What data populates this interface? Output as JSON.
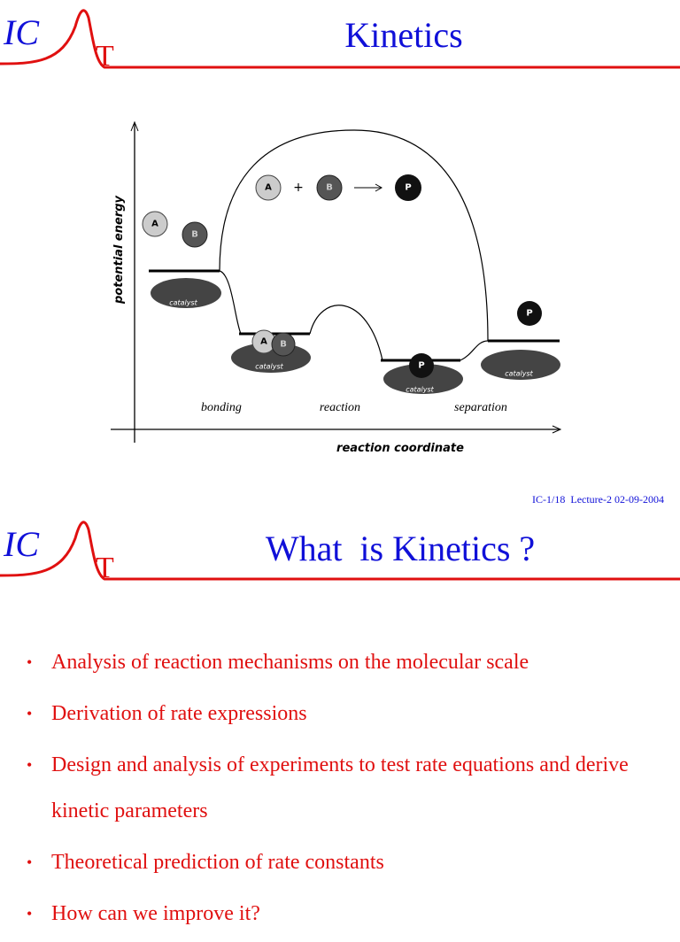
{
  "slides": [
    {
      "logo": {
        "left": "IC",
        "right": "T"
      },
      "title": "Kinetics",
      "diagram": {
        "y_label": "potential energy",
        "x_label": "reaction coordinate",
        "stages": [
          "bonding",
          "reaction",
          "separation"
        ],
        "catalyst": "catalyst",
        "reactant_a": "A",
        "reactant_b": "B",
        "plus": "+",
        "product": "P"
      },
      "footer": "IC-1/18  Lecture-2 02-09-2004"
    },
    {
      "logo": {
        "left": "IC",
        "right": "T"
      },
      "title": "What  is Kinetics ?",
      "bullets": [
        "Analysis of reaction mechanisms on the molecular scale",
        "Derivation of rate expressions",
        "Design and analysis of experiments to test rate equations and derive kinetic parameters",
        "Theoretical prediction of rate constants",
        "How can we improve it?"
      ]
    }
  ]
}
